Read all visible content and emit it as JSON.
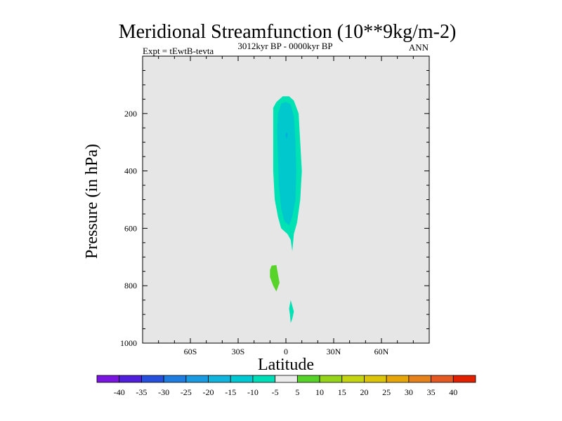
{
  "chart_data": {
    "type": "contour",
    "title": "Meridional Streamfunction (10**9kg/m-2)",
    "left_string": "Expt = tEwtB-tevta",
    "center_string": "3012kyr BP - 0000kyr BP",
    "right_string": "ANN",
    "xlabel": "Latitude",
    "ylabel": "Pressure (in hPa)",
    "xlim": [
      -90,
      90
    ],
    "ylim": [
      1000,
      0
    ],
    "x_ticks": [
      {
        "value": -60,
        "label": "60S"
      },
      {
        "value": -30,
        "label": "30S"
      },
      {
        "value": 0,
        "label": "0"
      },
      {
        "value": 30,
        "label": "30N"
      },
      {
        "value": 60,
        "label": "60N"
      }
    ],
    "y_ticks": [
      {
        "value": 200,
        "label": "200"
      },
      {
        "value": 400,
        "label": "400"
      },
      {
        "value": 600,
        "label": "600"
      },
      {
        "value": 800,
        "label": "800"
      },
      {
        "value": 1000,
        "label": "1000"
      }
    ],
    "background_color": "#e6e6e6",
    "contour_regions": [
      {
        "name": "upper-negative-cell",
        "level_range": [
          -10,
          -5
        ],
        "color": "#00e2b3",
        "outline": [
          [
            -8,
            180
          ],
          [
            -6,
            160
          ],
          [
            -2,
            140
          ],
          [
            2,
            140
          ],
          [
            5,
            155
          ],
          [
            8,
            200
          ],
          [
            9,
            300
          ],
          [
            10,
            400
          ],
          [
            9,
            500
          ],
          [
            7,
            580
          ],
          [
            5,
            620
          ],
          [
            4,
            680
          ],
          [
            3,
            640
          ],
          [
            1,
            620
          ],
          [
            -3,
            600
          ],
          [
            -5,
            560
          ],
          [
            -7,
            500
          ],
          [
            -8,
            400
          ],
          [
            -8,
            300
          ]
        ]
      },
      {
        "name": "upper-negative-core",
        "level_range": [
          -15,
          -10
        ],
        "color": "#00c8cc",
        "outline": [
          [
            -5,
            200
          ],
          [
            -3,
            165
          ],
          [
            0,
            160
          ],
          [
            3,
            168
          ],
          [
            5,
            210
          ],
          [
            6,
            300
          ],
          [
            6.5,
            400
          ],
          [
            6,
            500
          ],
          [
            4,
            560
          ],
          [
            2,
            590
          ],
          [
            -1,
            575
          ],
          [
            -3,
            530
          ],
          [
            -4.5,
            450
          ],
          [
            -5,
            350
          ],
          [
            -5.5,
            260
          ]
        ]
      },
      {
        "name": "upper-min-dot",
        "level_range": [
          -20,
          -15
        ],
        "color": "#00b2dc",
        "outline": [
          [
            0.2,
            265
          ],
          [
            1,
            270
          ],
          [
            1,
            282
          ],
          [
            0.2,
            287
          ],
          [
            -0.4,
            276
          ]
        ]
      },
      {
        "name": "lower-positive-cell",
        "level_range": [
          5,
          10
        ],
        "color": "#57d32a",
        "outline": [
          [
            -9,
            730
          ],
          [
            -6,
            728
          ],
          [
            -5,
            760
          ],
          [
            -4,
            790
          ],
          [
            -6,
            820
          ],
          [
            -8,
            800
          ],
          [
            -10,
            770
          ],
          [
            -10,
            745
          ]
        ]
      },
      {
        "name": "lower-negative-sliver",
        "level_range": [
          -10,
          -5
        ],
        "color": "#00e2b3",
        "outline": [
          [
            3,
            850
          ],
          [
            4,
            870
          ],
          [
            5,
            890
          ],
          [
            4,
            915
          ],
          [
            3,
            930
          ],
          [
            2.5,
            900
          ],
          [
            2,
            880
          ]
        ]
      }
    ],
    "colorbar": {
      "labels": [
        "-40",
        "-35",
        "-30",
        "-25",
        "-20",
        "-15",
        "-10",
        "-5",
        "5",
        "10",
        "15",
        "20",
        "25",
        "30",
        "35",
        "40"
      ],
      "colors": [
        "#7a15e0",
        "#4f1fdc",
        "#2650dc",
        "#1f7de0",
        "#1a9ae0",
        "#10b4dc",
        "#00c8d2",
        "#00deb8",
        "#ebebeb",
        "#56d22a",
        "#96d41c",
        "#c4d410",
        "#dcc40a",
        "#e6a60a",
        "#e6821c",
        "#e45822",
        "#e02000"
      ]
    }
  }
}
